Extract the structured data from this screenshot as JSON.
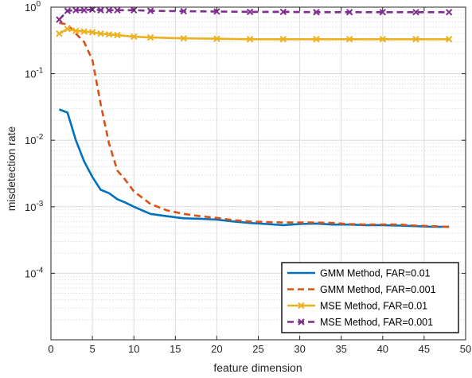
{
  "chart_data": {
    "type": "line",
    "title": "",
    "xlabel": "feature dimension",
    "ylabel": "misdetection rate",
    "xlim": [
      0,
      50
    ],
    "ylim": [
      1e-05,
      1
    ],
    "yscale": "log",
    "grid": true,
    "minor_grid": true,
    "legend_position": "bottom-right",
    "x_ticks": [
      0,
      5,
      10,
      15,
      20,
      25,
      30,
      35,
      40,
      45,
      50
    ],
    "x_tick_labels": [
      "0",
      "5",
      "10",
      "15",
      "20",
      "25",
      "30",
      "35",
      "40",
      "45",
      "50"
    ],
    "y_ticks": [
      0.0001,
      0.001,
      0.01,
      0.1,
      1
    ],
    "y_tick_labels": [
      {
        "base": "10",
        "exp": "-4"
      },
      {
        "base": "10",
        "exp": "-3"
      },
      {
        "base": "10",
        "exp": "-2"
      },
      {
        "base": "10",
        "exp": "-1"
      },
      {
        "base": "10",
        "exp": "0"
      }
    ],
    "series": [
      {
        "name": "GMM Method, FAR=0.01",
        "color": "#0072BD",
        "style": "solid",
        "marker": "none",
        "x": [
          1,
          2,
          3,
          4,
          5,
          6,
          7,
          8,
          9,
          10,
          12,
          14,
          16,
          18,
          20,
          22,
          24,
          26,
          28,
          30,
          32,
          34,
          36,
          38,
          40,
          42,
          44,
          46,
          48
        ],
        "y": [
          0.029,
          0.026,
          0.01,
          0.0048,
          0.0028,
          0.0018,
          0.0016,
          0.0013,
          0.00115,
          0.001,
          0.00078,
          0.00072,
          0.00067,
          0.00066,
          0.00064,
          0.0006,
          0.00057,
          0.00055,
          0.00053,
          0.00055,
          0.00056,
          0.00054,
          0.00054,
          0.00053,
          0.00053,
          0.00052,
          0.00051,
          0.0005,
          0.0005
        ]
      },
      {
        "name": "GMM Method, FAR=0.001",
        "color": "#D95319",
        "style": "dashed",
        "marker": "none",
        "x": [
          1,
          2,
          3,
          4,
          5,
          6,
          7,
          8,
          9,
          10,
          12,
          14,
          16,
          18,
          20,
          22,
          24,
          26,
          28,
          30,
          32,
          34,
          36,
          38,
          40,
          42,
          44,
          46,
          48
        ],
        "y": [
          0.58,
          0.55,
          0.4,
          0.3,
          0.16,
          0.035,
          0.009,
          0.0035,
          0.0025,
          0.0017,
          0.0011,
          0.00088,
          0.00078,
          0.00072,
          0.00068,
          0.00063,
          0.0006,
          0.00059,
          0.00058,
          0.00058,
          0.00058,
          0.00057,
          0.00055,
          0.00054,
          0.00054,
          0.00054,
          0.00052,
          0.00051,
          0.0005
        ]
      },
      {
        "name": "MSE Method, FAR=0.01",
        "color": "#EDB120",
        "style": "solid",
        "marker": "x",
        "x": [
          1,
          2,
          3,
          4,
          5,
          6,
          7,
          8,
          10,
          12,
          16,
          20,
          24,
          28,
          32,
          36,
          40,
          44,
          48
        ],
        "y": [
          0.4,
          0.47,
          0.44,
          0.43,
          0.42,
          0.4,
          0.39,
          0.38,
          0.36,
          0.35,
          0.34,
          0.335,
          0.33,
          0.33,
          0.33,
          0.33,
          0.33,
          0.33,
          0.33
        ]
      },
      {
        "name": "MSE Method, FAR=0.001",
        "color": "#7E2F8E",
        "style": "dashed",
        "marker": "x",
        "x": [
          1,
          2,
          3,
          4,
          5,
          6,
          7,
          8,
          10,
          12,
          16,
          20,
          24,
          28,
          32,
          36,
          40,
          44,
          48
        ],
        "y": [
          0.65,
          0.88,
          0.9,
          0.9,
          0.92,
          0.9,
          0.9,
          0.9,
          0.9,
          0.88,
          0.87,
          0.86,
          0.85,
          0.85,
          0.84,
          0.84,
          0.84,
          0.84,
          0.84
        ]
      }
    ]
  }
}
